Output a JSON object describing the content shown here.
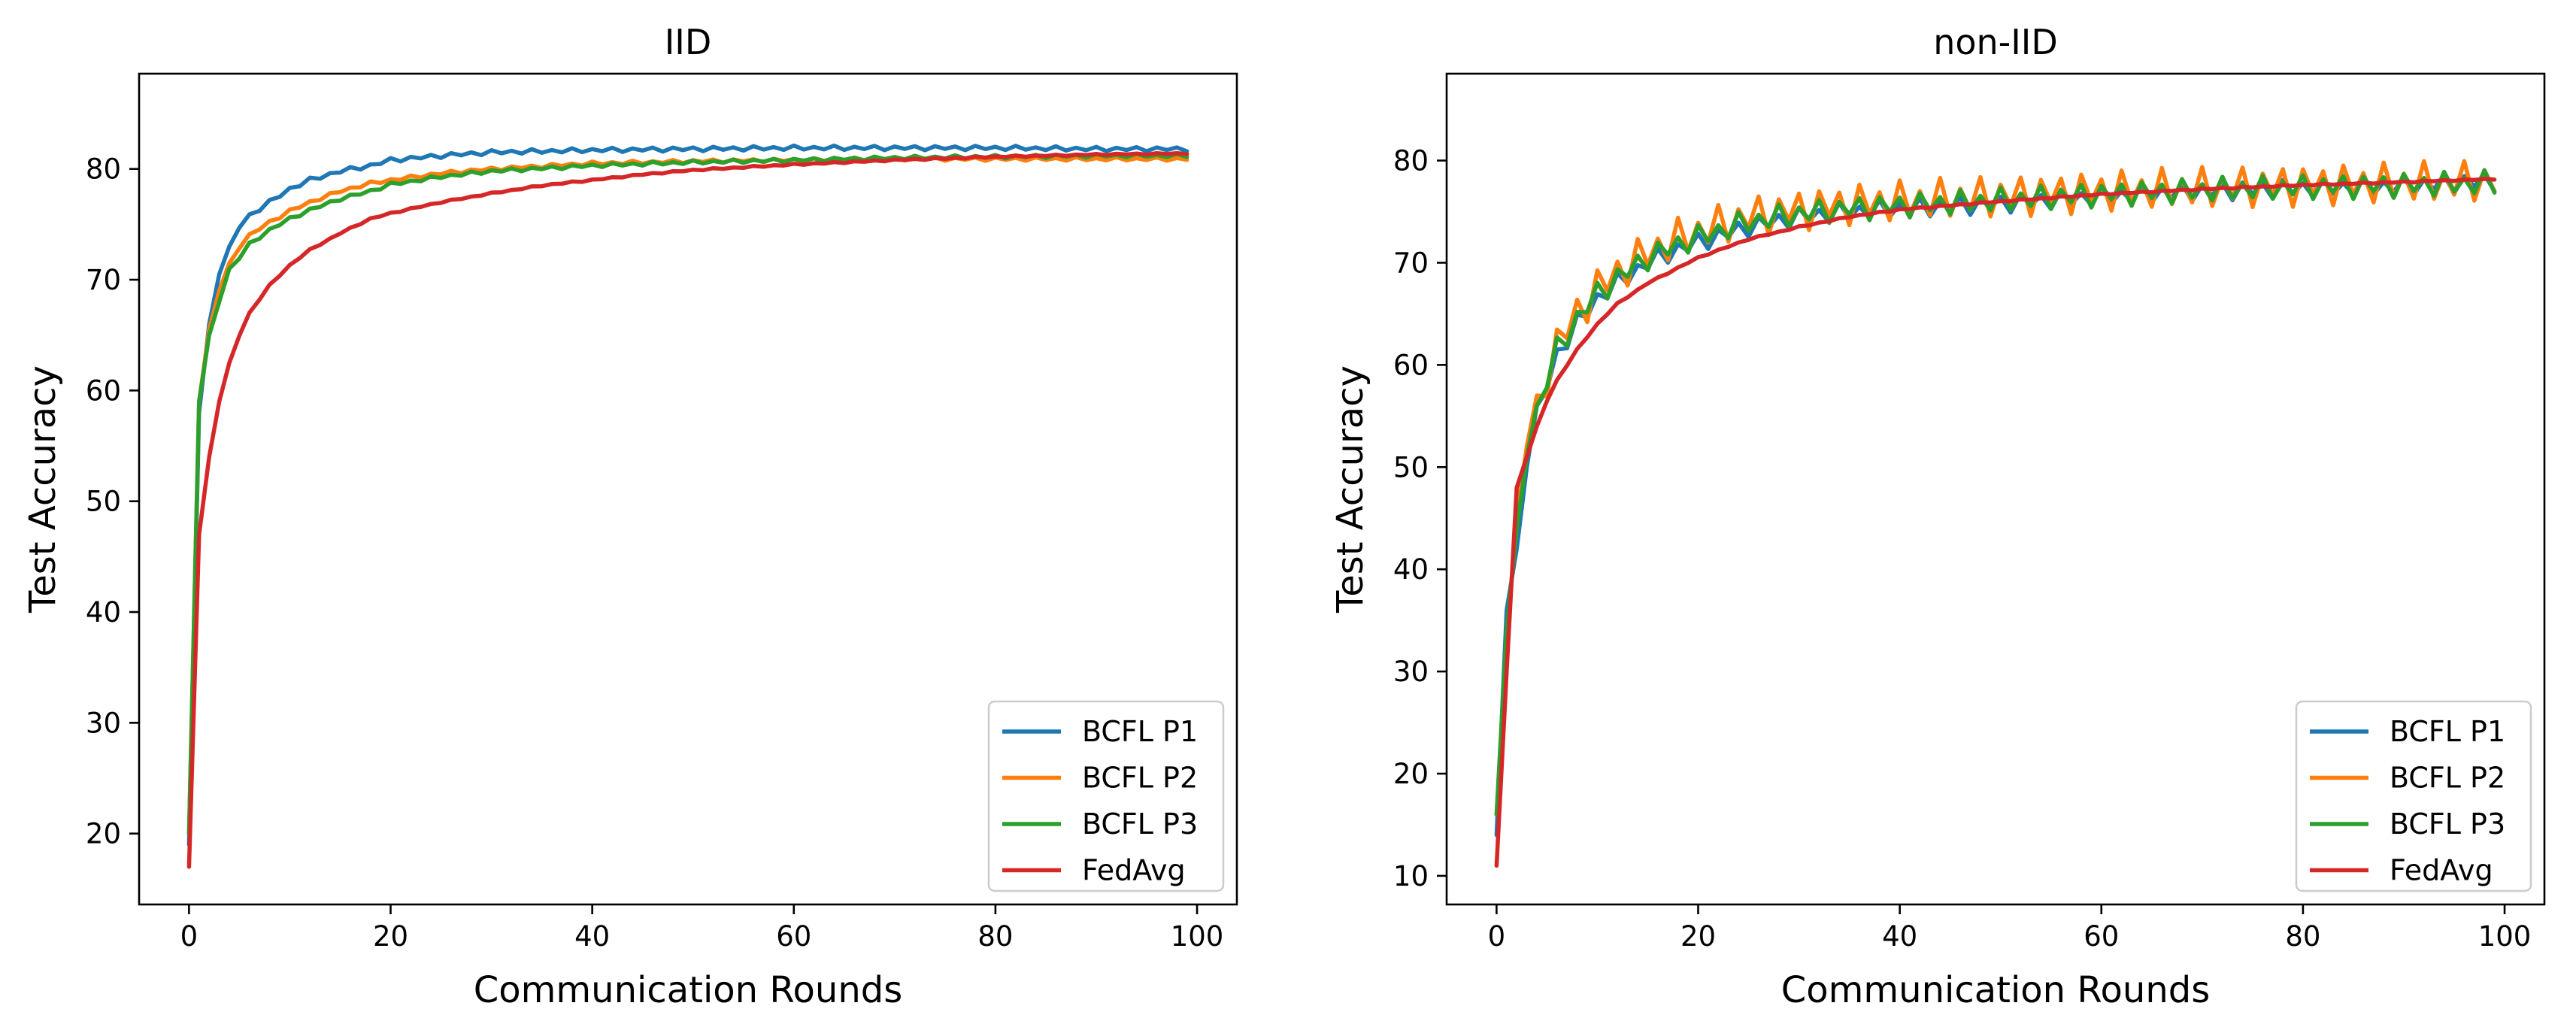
{
  "chart_data": [
    {
      "type": "line",
      "title": "IID",
      "xlabel": "Communication Rounds",
      "ylabel": "Test Accuracy",
      "xlim": [
        -4.95,
        103.95
      ],
      "ylim": [
        13.6,
        88.6
      ],
      "xticks": [
        0,
        20,
        40,
        60,
        80,
        100
      ],
      "yticks": [
        20,
        30,
        40,
        50,
        60,
        70,
        80
      ],
      "xtick_labels": [
        "0",
        "20",
        "40",
        "60",
        "80",
        "100"
      ],
      "ytick_labels": [
        "20",
        "30",
        "40",
        "50",
        "60",
        "70",
        "80"
      ],
      "legend_position": "lower-right",
      "series": [
        {
          "name": "BCFL P1",
          "color": "#1f77b4",
          "anchors": [
            [
              0,
              19
            ],
            [
              1,
              58
            ],
            [
              2,
              66
            ],
            [
              3,
              70.5
            ],
            [
              4,
              73
            ],
            [
              5,
              74.8
            ],
            [
              6,
              75.8
            ],
            [
              8,
              77
            ],
            [
              10,
              78.2
            ],
            [
              12,
              79
            ],
            [
              15,
              79.8
            ],
            [
              18,
              80.3
            ],
            [
              20,
              80.8
            ],
            [
              25,
              81.2
            ],
            [
              30,
              81.5
            ],
            [
              40,
              81.7
            ],
            [
              50,
              81.8
            ],
            [
              60,
              81.9
            ],
            [
              70,
              81.9
            ],
            [
              80,
              81.9
            ],
            [
              90,
              81.8
            ],
            [
              99,
              81.8
            ]
          ],
          "jitter": 0.15
        },
        {
          "name": "BCFL P2",
          "color": "#ff7f0e",
          "anchors": [
            [
              0,
              20
            ],
            [
              1,
              59
            ],
            [
              2,
              65.5
            ],
            [
              3,
              69
            ],
            [
              4,
              71.5
            ],
            [
              5,
              73
            ],
            [
              6,
              74
            ],
            [
              8,
              75.2
            ],
            [
              10,
              76.2
            ],
            [
              12,
              77
            ],
            [
              15,
              78
            ],
            [
              18,
              78.7
            ],
            [
              20,
              79
            ],
            [
              25,
              79.6
            ],
            [
              30,
              80
            ],
            [
              40,
              80.5
            ],
            [
              50,
              80.7
            ],
            [
              60,
              80.8
            ],
            [
              70,
              80.9
            ],
            [
              80,
              80.9
            ],
            [
              90,
              80.9
            ],
            [
              99,
              80.9
            ]
          ],
          "jitter": 0.12
        },
        {
          "name": "BCFL P3",
          "color": "#2ca02c",
          "anchors": [
            [
              0,
              20
            ],
            [
              1,
              59
            ],
            [
              2,
              65
            ],
            [
              3,
              68
            ],
            [
              4,
              71
            ],
            [
              5,
              72
            ],
            [
              6,
              73.2
            ],
            [
              8,
              74.5
            ],
            [
              10,
              75.5
            ],
            [
              12,
              76.3
            ],
            [
              15,
              77.3
            ],
            [
              18,
              78
            ],
            [
              20,
              78.6
            ],
            [
              25,
              79.3
            ],
            [
              30,
              79.8
            ],
            [
              40,
              80.3
            ],
            [
              50,
              80.6
            ],
            [
              60,
              80.8
            ],
            [
              70,
              81
            ],
            [
              80,
              81.1
            ],
            [
              90,
              81.2
            ],
            [
              99,
              81.2
            ]
          ],
          "jitter": 0.12
        },
        {
          "name": "FedAvg",
          "color": "#d62728",
          "anchors": [
            [
              0,
              17
            ],
            [
              1,
              47
            ],
            [
              2,
              54
            ],
            [
              3,
              59
            ],
            [
              4,
              62.5
            ],
            [
              5,
              65
            ],
            [
              6,
              67
            ],
            [
              8,
              69.5
            ],
            [
              10,
              71.3
            ],
            [
              12,
              72.7
            ],
            [
              15,
              74.2
            ],
            [
              18,
              75.5
            ],
            [
              20,
              76
            ],
            [
              25,
              77
            ],
            [
              30,
              77.8
            ],
            [
              35,
              78.5
            ],
            [
              40,
              79
            ],
            [
              45,
              79.5
            ],
            [
              50,
              79.9
            ],
            [
              60,
              80.4
            ],
            [
              70,
              80.8
            ],
            [
              80,
              81.1
            ],
            [
              90,
              81.3
            ],
            [
              99,
              81.4
            ]
          ],
          "jitter": 0.05
        }
      ]
    },
    {
      "type": "line",
      "title": "non-IID",
      "xlabel": "Communication Rounds",
      "ylabel": "Test Accuracy",
      "xlim": [
        -4.95,
        103.95
      ],
      "ylim": [
        7.2,
        88.5
      ],
      "xticks": [
        0,
        20,
        40,
        60,
        80,
        100
      ],
      "yticks": [
        10,
        20,
        30,
        40,
        50,
        60,
        70,
        80
      ],
      "xtick_labels": [
        "0",
        "20",
        "40",
        "60",
        "80",
        "100"
      ],
      "ytick_labels": [
        "10",
        "20",
        "30",
        "40",
        "50",
        "60",
        "70",
        "80"
      ],
      "legend_position": "lower-right",
      "series": [
        {
          "name": "BCFL P1",
          "color": "#1f77b4",
          "anchors": [
            [
              0,
              14
            ],
            [
              1,
              36
            ],
            [
              2,
              42
            ],
            [
              3,
              50
            ],
            [
              4,
              56
            ],
            [
              5,
              58
            ],
            [
              6,
              61
            ],
            [
              8,
              64
            ],
            [
              10,
              66.5
            ],
            [
              12,
              68
            ],
            [
              15,
              70
            ],
            [
              18,
              71.3
            ],
            [
              20,
              72
            ],
            [
              25,
              73.5
            ],
            [
              30,
              74.5
            ],
            [
              35,
              75
            ],
            [
              40,
              75.3
            ],
            [
              50,
              75.8
            ],
            [
              60,
              76.5
            ],
            [
              70,
              77
            ],
            [
              80,
              77.3
            ],
            [
              90,
              77.5
            ],
            [
              99,
              78
            ]
          ],
          "jitter": 0.7
        },
        {
          "name": "BCFL P2",
          "color": "#ff7f0e",
          "anchors": [
            [
              0,
              16
            ],
            [
              1,
              33
            ],
            [
              2,
              45
            ],
            [
              3,
              52
            ],
            [
              4,
              57
            ],
            [
              5,
              59
            ],
            [
              6,
              62
            ],
            [
              8,
              65
            ],
            [
              10,
              67.5
            ],
            [
              12,
              69
            ],
            [
              15,
              71
            ],
            [
              18,
              72.3
            ],
            [
              20,
              73
            ],
            [
              25,
              74.5
            ],
            [
              30,
              75.2
            ],
            [
              35,
              75.7
            ],
            [
              40,
              76
            ],
            [
              50,
              76.5
            ],
            [
              60,
              77
            ],
            [
              70,
              77.3
            ],
            [
              80,
              77.6
            ],
            [
              90,
              77.8
            ],
            [
              99,
              78
            ]
          ],
          "jitter": 1.5
        },
        {
          "name": "BCFL P3",
          "color": "#2ca02c",
          "anchors": [
            [
              0,
              16
            ],
            [
              1,
              34
            ],
            [
              2,
              44
            ],
            [
              3,
              51
            ],
            [
              4,
              56
            ],
            [
              5,
              58.5
            ],
            [
              6,
              61.5
            ],
            [
              8,
              64.5
            ],
            [
              10,
              67
            ],
            [
              12,
              68.5
            ],
            [
              15,
              70.5
            ],
            [
              18,
              71.8
            ],
            [
              20,
              72.5
            ],
            [
              25,
              74
            ],
            [
              30,
              74.8
            ],
            [
              35,
              75.3
            ],
            [
              40,
              75.6
            ],
            [
              50,
              76.1
            ],
            [
              60,
              76.7
            ],
            [
              70,
              77.1
            ],
            [
              80,
              77.4
            ],
            [
              90,
              77.6
            ],
            [
              99,
              77.8
            ]
          ],
          "jitter": 0.9
        },
        {
          "name": "FedAvg",
          "color": "#d62728",
          "anchors": [
            [
              0,
              11
            ],
            [
              1,
              30
            ],
            [
              2,
              48
            ],
            [
              3,
              51
            ],
            [
              4,
              54
            ],
            [
              5,
              56.5
            ],
            [
              6,
              58.5
            ],
            [
              8,
              61.5
            ],
            [
              10,
              64
            ],
            [
              12,
              66
            ],
            [
              15,
              68
            ],
            [
              18,
              69.5
            ],
            [
              20,
              70.5
            ],
            [
              25,
              72.3
            ],
            [
              30,
              73.5
            ],
            [
              35,
              74.5
            ],
            [
              40,
              75.2
            ],
            [
              50,
              76
            ],
            [
              60,
              76.7
            ],
            [
              70,
              77.2
            ],
            [
              80,
              77.6
            ],
            [
              90,
              77.9
            ],
            [
              99,
              78.2
            ]
          ],
          "jitter": 0.05
        }
      ]
    }
  ]
}
